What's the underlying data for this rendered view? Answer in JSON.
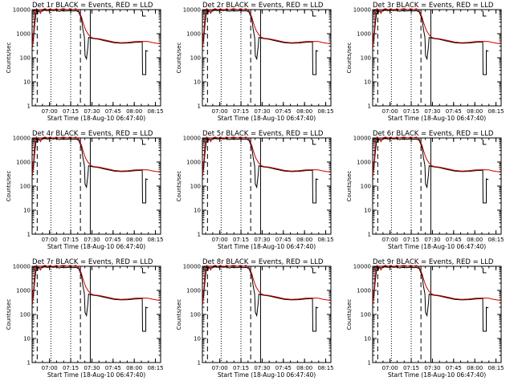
{
  "figure": {
    "y_tick_labels": [
      "1",
      "10",
      "100",
      "1000",
      "10000"
    ],
    "x_tick_labels": [
      "07:00",
      "07:15",
      "07:30",
      "07:45",
      "08:00",
      "08:15"
    ],
    "colors": {
      "events": "#000000",
      "lld": "#cc0000",
      "axes": "#000000",
      "background": "#ffffff"
    }
  },
  "chart_data": [
    {
      "type": "line",
      "title": "Det 1r BLACK = Events, RED = LLD",
      "ylabel": "Counts/sec",
      "xlabel": "Start Time (18-Aug-10 06:47:40)"
    },
    {
      "type": "line",
      "title": "Det 2r BLACK = Events, RED = LLD",
      "ylabel": "Counts/sec",
      "xlabel": "Start Time (18-Aug-10 06:47:40)"
    },
    {
      "type": "line",
      "title": "Det 3r BLACK = Events, RED = LLD",
      "ylabel": "Counts/sec",
      "xlabel": "Start Time (18-Aug-10 06:47:40)"
    },
    {
      "type": "line",
      "title": "Det 4r BLACK = Events, RED = LLD",
      "ylabel": "Counts/sec",
      "xlabel": "Start Time (18-Aug-10 06:47:40)"
    },
    {
      "type": "line",
      "title": "Det 5r BLACK = Events, RED = LLD",
      "ylabel": "Counts/sec",
      "xlabel": "Start Time (18-Aug-10 06:47:40)"
    },
    {
      "type": "line",
      "title": "Det 6r BLACK = Events, RED = LLD",
      "ylabel": "Counts/sec",
      "xlabel": "Start Time (18-Aug-10 06:47:40)"
    },
    {
      "type": "line",
      "title": "Det 7r BLACK = Events, RED = LLD",
      "ylabel": "Counts/sec",
      "xlabel": "Start Time (18-Aug-10 06:47:40)"
    },
    {
      "type": "line",
      "title": "Det 8r BLACK = Events, RED = LLD",
      "ylabel": "Counts/sec",
      "xlabel": "Start Time (18-Aug-10 06:47:40)"
    },
    {
      "type": "line",
      "title": "Det 9r BLACK = Events, RED = LLD",
      "ylabel": "Counts/sec",
      "xlabel": "Start Time (18-Aug-10 06:47:40)"
    }
  ]
}
